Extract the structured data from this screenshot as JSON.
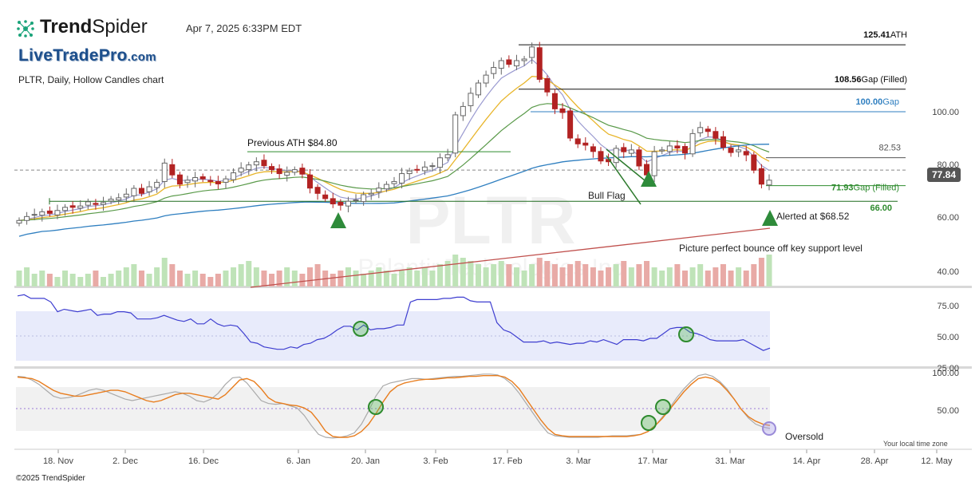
{
  "header": {
    "brand": "TrendSpider",
    "brand_bold": "Trend",
    "brand_light": "Spider",
    "timestamp": "Apr 7, 2025 6:33PM EDT",
    "site_logo": "LiveTradePro",
    "site_logo_tld": ".com",
    "subtitle": "PLTR, Daily, Hollow Candles chart",
    "copyright": "©2025 TrendSpider"
  },
  "watermark": {
    "symbol": "PLTR",
    "company": "Palantir Technologies Inc"
  },
  "colors": {
    "up": "#2e8b2e",
    "down": "#b22222",
    "ema_fast": "#9a9ad0",
    "ema_mid": "#e8b52a",
    "ema_slow": "#5a9a4a",
    "sma_long": "#2f7fc0",
    "sma_200": "#c0504d",
    "rsi": "#3e3ed0",
    "stoch_k": "#aaaaaa",
    "stoch_d": "#e87d1e"
  },
  "chart_data": [
    {
      "type": "candlestick",
      "panel": "price",
      "y_ticks": [
        "100.00",
        "80.00",
        "60.00",
        "40.00"
      ],
      "ylim": [
        35,
        130
      ],
      "x_ticks": [
        "18. Nov",
        "2. Dec",
        "16. Dec",
        "6. Jan",
        "20. Jan",
        "3. Feb",
        "17. Feb",
        "3. Mar",
        "17. Mar",
        "31. Mar",
        "14. Apr",
        "28. Apr",
        "12. May"
      ],
      "closes": [
        58.7,
        60.2,
        61.0,
        62.0,
        61.4,
        62.5,
        63.7,
        63.7,
        64.2,
        65.8,
        64.8,
        65.5,
        66.8,
        67.3,
        68.7,
        70.9,
        69.0,
        71.5,
        73.2,
        80.5,
        76.0,
        72.5,
        74.0,
        75.0,
        74.5,
        73.5,
        72.6,
        74.5,
        76.8,
        78.6,
        79.8,
        81.0,
        79.5,
        78.0,
        76.5,
        77.0,
        78.0,
        76.3,
        71.0,
        69.0,
        67.0,
        65.0,
        64.5,
        66.0,
        66.5,
        68.5,
        69.0,
        71.0,
        72.4,
        73.5,
        76.5,
        77.5,
        77.9,
        79.0,
        79.5,
        82.5,
        83.7,
        98.8,
        102.0,
        107.0,
        110.9,
        113.9,
        116.8,
        119.4,
        118.0,
        119.4,
        120.0,
        124.6,
        112.3,
        107.5,
        101.1,
        99.7,
        90.0,
        87.8,
        87.3,
        84.9,
        81.3,
        81.0,
        86.1,
        84.8,
        85.5,
        79.4,
        76.0,
        84.8,
        85.5,
        87.0,
        86.2,
        84.3,
        91.7,
        94.0,
        92.5,
        89.9,
        86.5,
        84.5,
        85.5,
        83.6,
        77.8,
        72.5,
        74.0
      ],
      "volume_relative": [
        0.5,
        0.6,
        0.4,
        0.5,
        0.4,
        0.3,
        0.5,
        0.4,
        0.3,
        0.4,
        0.5,
        0.3,
        0.4,
        0.5,
        0.6,
        0.7,
        0.5,
        0.4,
        0.6,
        0.9,
        0.7,
        0.5,
        0.4,
        0.5,
        0.4,
        0.3,
        0.4,
        0.5,
        0.6,
        0.7,
        0.8,
        0.6,
        0.5,
        0.4,
        0.5,
        0.6,
        0.5,
        0.4,
        0.6,
        0.7,
        0.5,
        0.4,
        0.5,
        0.6,
        0.5,
        0.4,
        0.5,
        0.6,
        0.5,
        0.4,
        0.5,
        0.6,
        0.5,
        0.6,
        0.5,
        0.7,
        0.8,
        1.0,
        0.9,
        0.8,
        0.7,
        0.6,
        0.7,
        0.8,
        0.7,
        0.6,
        0.5,
        0.7,
        0.9,
        0.8,
        0.7,
        0.6,
        0.7,
        0.8,
        0.7,
        0.6,
        0.5,
        0.6,
        0.7,
        0.8,
        0.6,
        0.7,
        0.8,
        0.6,
        0.5,
        0.6,
        0.7,
        0.5,
        0.6,
        0.7,
        0.5,
        0.6,
        0.7,
        0.5,
        0.6,
        0.5,
        0.7,
        0.9,
        1.0
      ],
      "levels": [
        {
          "value": 125.41,
          "label": "125.41",
          "suffix": "ATH"
        },
        {
          "value": 108.56,
          "label": "108.56",
          "suffix": "Gap (Filled)"
        },
        {
          "value": 100.0,
          "label": "100.00",
          "suffix": "Gap"
        },
        {
          "value": 82.53,
          "label": "82.53",
          "suffix": ""
        },
        {
          "value": 71.93,
          "label": "71.93",
          "suffix": "Gap (Filled)"
        },
        {
          "value": 66.0,
          "label": "66.00",
          "suffix": ""
        },
        {
          "value": 84.8,
          "label": "Previous ATH $84.80",
          "suffix": ""
        }
      ],
      "last_price": "77.84",
      "annotations": [
        "Bull Flag",
        "Alerted at $68.52",
        "Picture perfect bounce off key support level"
      ]
    },
    {
      "type": "line",
      "panel": "rsi",
      "y_ticks": [
        "75.00",
        "50.00",
        "25.00"
      ],
      "ylim": [
        20,
        85
      ],
      "band": [
        30,
        70
      ],
      "values": [
        83,
        84,
        81,
        81,
        81,
        78,
        70,
        72,
        71,
        70,
        71,
        72,
        67,
        68,
        68,
        70,
        70,
        69,
        64,
        64,
        64,
        65,
        67,
        65,
        63,
        62,
        64,
        60,
        60,
        64,
        60,
        58,
        59,
        58,
        52,
        45,
        44,
        41,
        40,
        39,
        39,
        41,
        40,
        43,
        44,
        47,
        48,
        51,
        55,
        58,
        58,
        55,
        59,
        55,
        56,
        56,
        57,
        59,
        59,
        78,
        80,
        80,
        80,
        80,
        81,
        81,
        82,
        82,
        79,
        78,
        78,
        78,
        61,
        55,
        53,
        49,
        45,
        45,
        45,
        46,
        44,
        45,
        44,
        43,
        44,
        44,
        46,
        45,
        47,
        45,
        43,
        47,
        47,
        47,
        46,
        48,
        48,
        52,
        56,
        57,
        57,
        53,
        52,
        50,
        47,
        46,
        46,
        46,
        46,
        47,
        44,
        41,
        38,
        40
      ]
    },
    {
      "type": "line",
      "panel": "stochastic",
      "y_ticks": [
        "100.00",
        "50.00"
      ],
      "ylim": [
        0,
        110
      ],
      "band": [
        20,
        80
      ],
      "k": [
        95,
        94,
        90,
        84,
        76,
        68,
        65,
        66,
        68,
        72,
        76,
        78,
        76,
        72,
        68,
        64,
        62,
        64,
        66,
        68,
        70,
        72,
        74,
        72,
        68,
        62,
        60,
        64,
        72,
        84,
        93,
        94,
        86,
        74,
        62,
        58,
        57,
        58,
        55,
        52,
        42,
        28,
        16,
        12,
        11,
        12,
        14,
        18,
        30,
        48,
        68,
        82,
        86,
        88,
        90,
        92,
        92,
        91,
        92,
        93,
        94,
        95,
        95,
        96,
        97,
        98,
        98,
        97,
        92,
        84,
        72,
        58,
        44,
        30,
        18,
        14,
        13,
        12,
        12,
        12,
        12,
        12,
        13,
        14,
        14,
        14,
        15,
        16,
        20,
        28,
        40,
        52,
        66,
        78,
        88,
        96,
        98,
        95,
        88,
        78,
        64,
        50,
        38,
        30,
        26,
        24
      ],
      "d": [
        94,
        93,
        92,
        88,
        82,
        76,
        72,
        70,
        68,
        68,
        70,
        72,
        74,
        76,
        76,
        74,
        70,
        66,
        62,
        60,
        62,
        66,
        70,
        72,
        72,
        70,
        68,
        66,
        64,
        70,
        80,
        90,
        92,
        88,
        78,
        66,
        60,
        58,
        56,
        55,
        52,
        46,
        34,
        20,
        13,
        12,
        12,
        14,
        20,
        30,
        44,
        60,
        74,
        82,
        86,
        88,
        90,
        91,
        91,
        92,
        93,
        93,
        94,
        95,
        95,
        96,
        96,
        96,
        94,
        88,
        78,
        64,
        50,
        36,
        24,
        16,
        14,
        13,
        13,
        13,
        13,
        13,
        13,
        13,
        13,
        13,
        14,
        16,
        20,
        28,
        38,
        50,
        62,
        74,
        84,
        92,
        94,
        92,
        86,
        76,
        64,
        50,
        40,
        34,
        30,
        28
      ]
    }
  ],
  "date_note": "Your local time zone"
}
